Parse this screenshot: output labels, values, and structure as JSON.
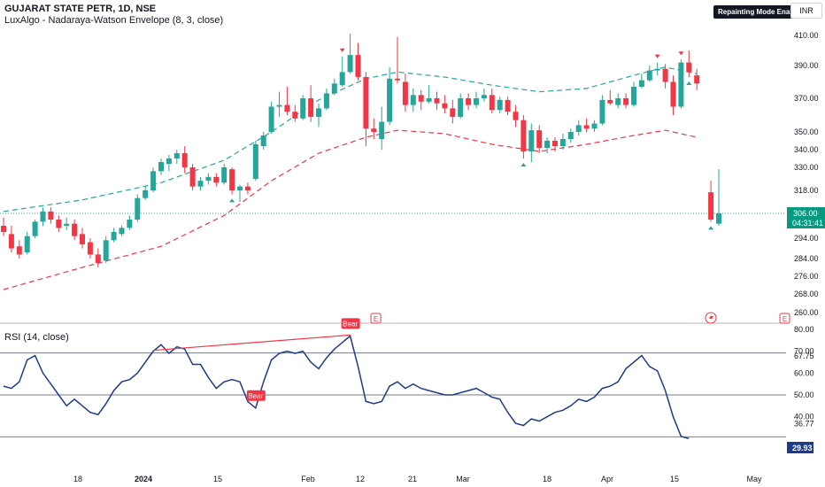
{
  "header": {
    "symbol_line": "GUJARAT STATE PETR, 1D, NSE",
    "indicator_line": "LuxAlgo - Nadaraya-Watson Envelope (8, 3, close)",
    "repaint_badge": "Repainting Mode Enabled",
    "currency": "INR"
  },
  "last_price": {
    "value": "306.00",
    "countdown": "04:31:41"
  },
  "rsi": {
    "title": "RSI (14, close)",
    "current": "29.93",
    "bear_label": "Bear"
  },
  "colors": {
    "up": "#26a69a",
    "down": "#f23645",
    "upper_env": "#26a69a",
    "lower_env": "#f23645",
    "rsi_line": "#1e3a8a",
    "divergence": "#f23645",
    "last_price_bg": "#089981"
  },
  "chart_data": [
    {
      "type": "candlestick",
      "title": "GUJARAT STATE PETR, 1D, NSE",
      "price_axis_ticks": [
        410,
        390,
        370,
        350,
        340,
        330,
        318,
        306,
        294,
        284,
        276,
        268,
        260
      ],
      "time_axis_ticks": [
        "18",
        "2024",
        "15",
        "Feb",
        "12",
        "21",
        "Mar",
        "18",
        "Apr",
        "15",
        "May"
      ],
      "candles": [
        {
          "o": 300,
          "h": 304,
          "l": 295,
          "c": 297
        },
        {
          "o": 296,
          "h": 300,
          "l": 287,
          "c": 289
        },
        {
          "o": 290,
          "h": 293,
          "l": 284,
          "c": 286
        },
        {
          "o": 287,
          "h": 297,
          "l": 286,
          "c": 295
        },
        {
          "o": 295,
          "h": 303,
          "l": 294,
          "c": 302
        },
        {
          "o": 302,
          "h": 309,
          "l": 300,
          "c": 307
        },
        {
          "o": 307,
          "h": 309,
          "l": 301,
          "c": 303
        },
        {
          "o": 303,
          "h": 305,
          "l": 297,
          "c": 299
        },
        {
          "o": 300,
          "h": 304,
          "l": 298,
          "c": 301
        },
        {
          "o": 301,
          "h": 303,
          "l": 293,
          "c": 295
        },
        {
          "o": 296,
          "h": 299,
          "l": 289,
          "c": 291
        },
        {
          "o": 292,
          "h": 294,
          "l": 284,
          "c": 286
        },
        {
          "o": 286,
          "h": 289,
          "l": 280,
          "c": 282
        },
        {
          "o": 283,
          "h": 295,
          "l": 282,
          "c": 293
        },
        {
          "o": 293,
          "h": 299,
          "l": 292,
          "c": 297
        },
        {
          "o": 296,
          "h": 300,
          "l": 295,
          "c": 299
        },
        {
          "o": 299,
          "h": 305,
          "l": 298,
          "c": 303
        },
        {
          "o": 303,
          "h": 316,
          "l": 302,
          "c": 314
        },
        {
          "o": 314,
          "h": 320,
          "l": 313,
          "c": 318
        },
        {
          "o": 318,
          "h": 330,
          "l": 317,
          "c": 328
        },
        {
          "o": 328,
          "h": 335,
          "l": 326,
          "c": 333
        },
        {
          "o": 332,
          "h": 337,
          "l": 328,
          "c": 335
        },
        {
          "o": 335,
          "h": 340,
          "l": 332,
          "c": 338
        },
        {
          "o": 338,
          "h": 342,
          "l": 327,
          "c": 330
        },
        {
          "o": 330,
          "h": 332,
          "l": 318,
          "c": 320
        },
        {
          "o": 320,
          "h": 325,
          "l": 318,
          "c": 323
        },
        {
          "o": 323,
          "h": 327,
          "l": 321,
          "c": 325
        },
        {
          "o": 325,
          "h": 327,
          "l": 320,
          "c": 322
        },
        {
          "o": 322,
          "h": 332,
          "l": 321,
          "c": 330
        },
        {
          "o": 329,
          "h": 330,
          "l": 316,
          "c": 318
        },
        {
          "o": 318,
          "h": 321,
          "l": 312,
          "c": 320
        },
        {
          "o": 320,
          "h": 322,
          "l": 316,
          "c": 318
        },
        {
          "o": 324,
          "h": 345,
          "l": 323,
          "c": 343
        },
        {
          "o": 342,
          "h": 350,
          "l": 340,
          "c": 348
        },
        {
          "o": 350,
          "h": 368,
          "l": 349,
          "c": 365
        },
        {
          "o": 365,
          "h": 374,
          "l": 359,
          "c": 366
        },
        {
          "o": 366,
          "h": 377,
          "l": 360,
          "c": 362
        },
        {
          "o": 362,
          "h": 366,
          "l": 356,
          "c": 358
        },
        {
          "o": 358,
          "h": 372,
          "l": 357,
          "c": 370
        },
        {
          "o": 370,
          "h": 378,
          "l": 356,
          "c": 359
        },
        {
          "o": 359,
          "h": 367,
          "l": 353,
          "c": 364
        },
        {
          "o": 364,
          "h": 376,
          "l": 363,
          "c": 373
        },
        {
          "o": 373,
          "h": 382,
          "l": 372,
          "c": 379
        },
        {
          "o": 378,
          "h": 396,
          "l": 377,
          "c": 386
        },
        {
          "o": 386,
          "h": 411,
          "l": 385,
          "c": 397
        },
        {
          "o": 397,
          "h": 405,
          "l": 381,
          "c": 383
        },
        {
          "o": 383,
          "h": 386,
          "l": 342,
          "c": 352
        },
        {
          "o": 352,
          "h": 358,
          "l": 346,
          "c": 350
        },
        {
          "o": 346,
          "h": 365,
          "l": 340,
          "c": 356
        },
        {
          "o": 356,
          "h": 389,
          "l": 354,
          "c": 382
        },
        {
          "o": 382,
          "h": 409,
          "l": 379,
          "c": 381
        },
        {
          "o": 380,
          "h": 385,
          "l": 362,
          "c": 366
        },
        {
          "o": 366,
          "h": 376,
          "l": 362,
          "c": 372
        },
        {
          "o": 372,
          "h": 375,
          "l": 363,
          "c": 368
        },
        {
          "o": 368,
          "h": 378,
          "l": 367,
          "c": 370
        },
        {
          "o": 370,
          "h": 374,
          "l": 363,
          "c": 367
        },
        {
          "o": 367,
          "h": 372,
          "l": 361,
          "c": 364
        },
        {
          "o": 364,
          "h": 369,
          "l": 355,
          "c": 359
        },
        {
          "o": 359,
          "h": 373,
          "l": 358,
          "c": 370
        },
        {
          "o": 370,
          "h": 373,
          "l": 363,
          "c": 366
        },
        {
          "o": 366,
          "h": 374,
          "l": 364,
          "c": 370
        },
        {
          "o": 370,
          "h": 376,
          "l": 368,
          "c": 372
        },
        {
          "o": 372,
          "h": 376,
          "l": 361,
          "c": 363
        },
        {
          "o": 363,
          "h": 371,
          "l": 361,
          "c": 369
        },
        {
          "o": 369,
          "h": 371,
          "l": 360,
          "c": 362
        },
        {
          "o": 362,
          "h": 366,
          "l": 353,
          "c": 357
        },
        {
          "o": 357,
          "h": 360,
          "l": 335,
          "c": 339
        },
        {
          "o": 339,
          "h": 355,
          "l": 333,
          "c": 351
        },
        {
          "o": 351,
          "h": 354,
          "l": 338,
          "c": 341
        },
        {
          "o": 341,
          "h": 347,
          "l": 338,
          "c": 345
        },
        {
          "o": 345,
          "h": 347,
          "l": 339,
          "c": 342
        },
        {
          "o": 342,
          "h": 349,
          "l": 340,
          "c": 346
        },
        {
          "o": 346,
          "h": 352,
          "l": 344,
          "c": 350
        },
        {
          "o": 350,
          "h": 357,
          "l": 348,
          "c": 354
        },
        {
          "o": 354,
          "h": 358,
          "l": 350,
          "c": 352
        },
        {
          "o": 352,
          "h": 357,
          "l": 350,
          "c": 355
        },
        {
          "o": 355,
          "h": 372,
          "l": 354,
          "c": 369
        },
        {
          "o": 369,
          "h": 375,
          "l": 366,
          "c": 367
        },
        {
          "o": 366,
          "h": 373,
          "l": 364,
          "c": 370
        },
        {
          "o": 370,
          "h": 373,
          "l": 364,
          "c": 366
        },
        {
          "o": 366,
          "h": 380,
          "l": 365,
          "c": 377
        },
        {
          "o": 377,
          "h": 385,
          "l": 376,
          "c": 381
        },
        {
          "o": 381,
          "h": 390,
          "l": 380,
          "c": 387
        },
        {
          "o": 387,
          "h": 392,
          "l": 384,
          "c": 388
        },
        {
          "o": 388,
          "h": 391,
          "l": 376,
          "c": 380
        },
        {
          "o": 380,
          "h": 384,
          "l": 360,
          "c": 365
        },
        {
          "o": 365,
          "h": 394,
          "l": 364,
          "c": 392
        },
        {
          "o": 392,
          "h": 400,
          "l": 383,
          "c": 386
        },
        {
          "o": 384,
          "h": 388,
          "l": 375,
          "c": 379
        },
        {
          "o": 317,
          "h": 323,
          "l": 302,
          "c": 303
        },
        {
          "o": 301,
          "h": 329,
          "l": 300,
          "c": 306
        }
      ],
      "upper_envelope": [
        {
          "t": 0,
          "v": 307
        },
        {
          "t": 10,
          "v": 313
        },
        {
          "t": 20,
          "v": 322
        },
        {
          "t": 28,
          "v": 334
        },
        {
          "t": 34,
          "v": 350
        },
        {
          "t": 40,
          "v": 369
        },
        {
          "t": 46,
          "v": 382
        },
        {
          "t": 50,
          "v": 386
        },
        {
          "t": 56,
          "v": 383
        },
        {
          "t": 62,
          "v": 378
        },
        {
          "t": 68,
          "v": 374
        },
        {
          "t": 74,
          "v": 376
        },
        {
          "t": 80,
          "v": 384
        },
        {
          "t": 84,
          "v": 389
        },
        {
          "t": 88,
          "v": 385
        }
      ],
      "lower_envelope": [
        {
          "t": 0,
          "v": 270
        },
        {
          "t": 10,
          "v": 280
        },
        {
          "t": 20,
          "v": 290
        },
        {
          "t": 28,
          "v": 305
        },
        {
          "t": 34,
          "v": 323
        },
        {
          "t": 40,
          "v": 338
        },
        {
          "t": 46,
          "v": 347
        },
        {
          "t": 50,
          "v": 351
        },
        {
          "t": 56,
          "v": 349
        },
        {
          "t": 62,
          "v": 343
        },
        {
          "t": 68,
          "v": 339
        },
        {
          "t": 74,
          "v": 343
        },
        {
          "t": 80,
          "v": 348
        },
        {
          "t": 84,
          "v": 351
        },
        {
          "t": 88,
          "v": 347
        }
      ],
      "signals_down": [
        43,
        83,
        86
      ],
      "signals_up": [
        29,
        66,
        87
      ]
    },
    {
      "type": "line",
      "title": "RSI (14, close)",
      "ylim": [
        20,
        80
      ],
      "y_ticks": [
        80,
        70,
        67.75,
        60,
        50,
        40,
        36.77
      ],
      "current_value": 29.93,
      "levels": {
        "upper": 70,
        "lower": 30
      },
      "values": [
        54,
        53,
        56,
        66,
        68,
        60,
        55,
        50,
        45,
        48,
        45,
        42,
        41,
        46,
        52,
        56,
        57,
        60,
        65,
        70,
        73,
        69,
        72,
        71,
        64,
        64,
        58,
        53,
        56,
        57,
        56,
        47,
        44,
        56,
        66,
        69,
        70,
        69,
        70,
        65,
        62,
        67,
        71,
        74,
        77,
        63,
        47,
        46,
        47,
        54,
        56,
        53,
        55,
        53,
        52,
        51,
        50,
        50,
        51,
        52,
        53,
        51,
        49,
        48,
        42,
        37,
        36,
        39,
        38,
        40,
        42,
        43,
        45,
        48,
        47,
        49,
        53,
        54,
        56,
        62,
        65,
        68,
        63,
        61,
        52,
        40,
        31,
        30
      ],
      "divergence": {
        "from": 19,
        "to": 44
      },
      "bear_at": [
        32,
        44
      ]
    }
  ]
}
